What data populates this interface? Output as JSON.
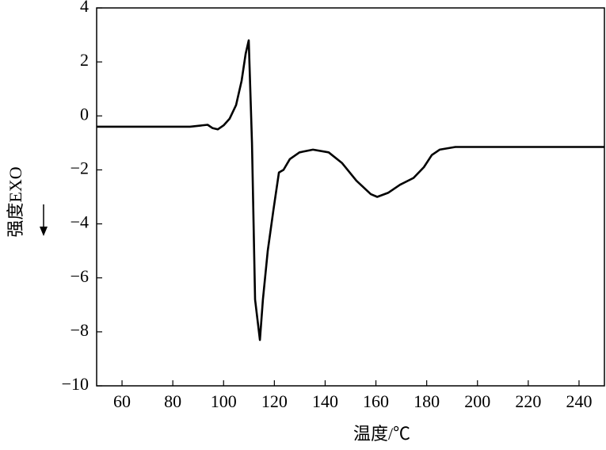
{
  "chart_data": {
    "type": "line",
    "x_label": "温度/℃",
    "y_label": "强度EXO",
    "xlim": [
      50,
      250
    ],
    "ylim": [
      -10,
      4
    ],
    "xticks": [
      60,
      80,
      100,
      120,
      140,
      160,
      180,
      200,
      220,
      240
    ],
    "yticks": [
      {
        "value": -10,
        "label": "−10"
      },
      {
        "value": -8,
        "label": "−8"
      },
      {
        "value": -6,
        "label": "−6"
      },
      {
        "value": -4,
        "label": "−4"
      },
      {
        "value": -2,
        "label": "−2"
      },
      0,
      2,
      4
    ],
    "series": [
      {
        "color": "#000000",
        "x": [
          50,
          86.8,
          93.7,
          95.6,
          97.7,
          100,
          102.4,
          104.9,
          107.1,
          108.7,
          109.9,
          111.2,
          112.4,
          114.3,
          115.5,
          117.4,
          119.6,
          121.8,
          123.6,
          126.1,
          129.9,
          135.2,
          141.4,
          146.7,
          152.3,
          158,
          160.5,
          164.8,
          169.5,
          174.8,
          178.9,
          182,
          185.1,
          191.3,
          250
        ],
        "values": [
          -0.4,
          -0.4,
          -0.33,
          -0.45,
          -0.5,
          -0.35,
          -0.1,
          0.4,
          1.3,
          2.3,
          2.8,
          -1,
          -6.8,
          -8.3,
          -6.8,
          -5,
          -3.5,
          -2.1,
          -2.0,
          -1.6,
          -1.35,
          -1.25,
          -1.35,
          -1.75,
          -2.4,
          -2.9,
          -3.0,
          -2.85,
          -2.55,
          -2.3,
          -1.9,
          -1.45,
          -1.25,
          -1.15,
          -1.15
        ]
      }
    ]
  }
}
